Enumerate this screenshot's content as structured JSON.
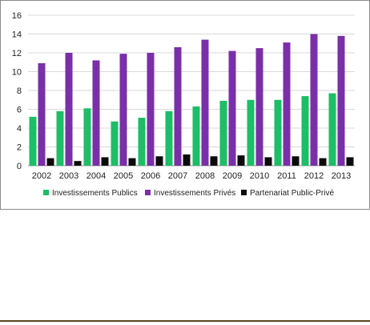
{
  "chart_data": {
    "type": "bar",
    "categories": [
      "2002",
      "2003",
      "2004",
      "2005",
      "2006",
      "2007",
      "2008",
      "2009",
      "2010",
      "2011",
      "2012",
      "2013"
    ],
    "series": [
      {
        "name": "Investissements Publics",
        "color": "#1ebd67",
        "values": [
          5.2,
          5.8,
          6.1,
          4.7,
          5.1,
          5.8,
          6.3,
          6.9,
          7.0,
          7.0,
          7.4,
          7.7
        ]
      },
      {
        "name": "Investissements Privés",
        "color": "#7a2fa8",
        "values": [
          10.9,
          12.0,
          11.2,
          11.9,
          12.0,
          12.6,
          13.4,
          12.2,
          12.5,
          13.1,
          14.0,
          13.8
        ]
      },
      {
        "name": "Partenariat Public-Privé",
        "color": "#0b0b0b",
        "values": [
          0.8,
          0.5,
          0.9,
          0.8,
          1.0,
          1.2,
          1.0,
          1.1,
          0.9,
          1.0,
          0.8,
          0.9
        ]
      }
    ],
    "ylim": [
      0,
      16
    ],
    "yticks": [
      0,
      2,
      4,
      6,
      8,
      10,
      12,
      14,
      16
    ],
    "grid": true,
    "legend_position": "bottom",
    "title": "",
    "xlabel": "",
    "ylabel": ""
  }
}
